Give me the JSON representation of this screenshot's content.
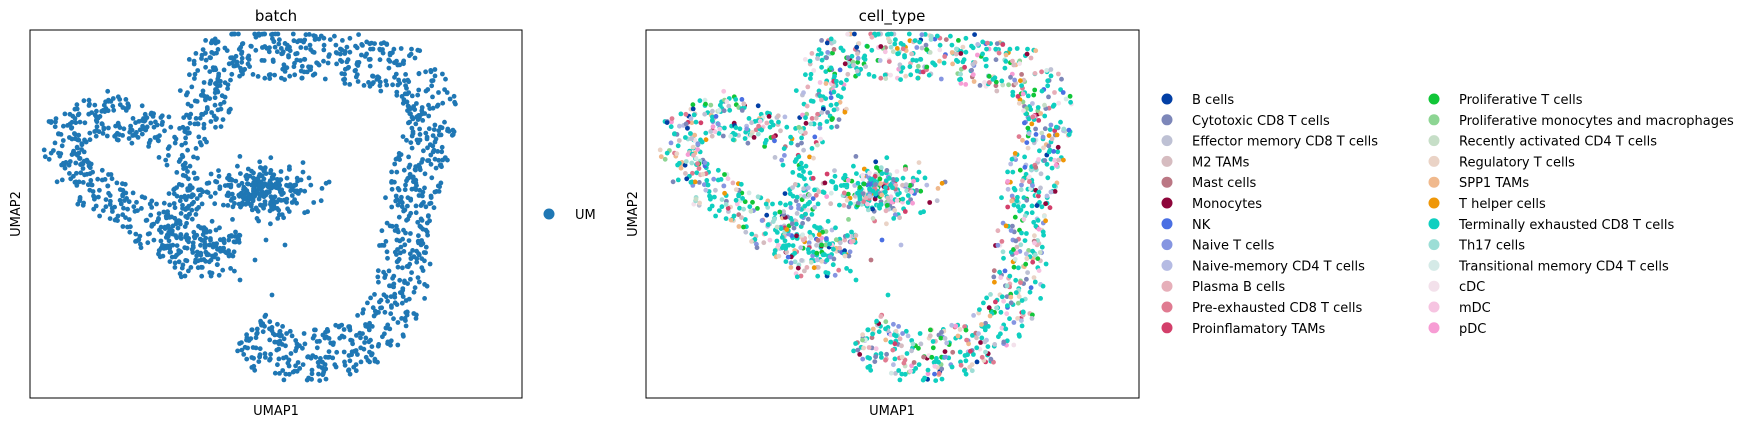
{
  "chart_data": [
    {
      "type": "scatter",
      "title": "batch",
      "xlabel": "UMAP1",
      "ylabel": "UMAP2",
      "xticks": "none",
      "yticks": "none",
      "grid": false,
      "legend_position": "right",
      "legend": [
        {
          "label": "UM",
          "color": "#1f77b4"
        }
      ]
    },
    {
      "type": "scatter",
      "title": "cell_type",
      "xlabel": "UMAP1",
      "ylabel": "UMAP2",
      "xticks": "none",
      "yticks": "none",
      "grid": false,
      "legend_position": "right",
      "legend_columns": 2,
      "legend": [
        {
          "label": "B cells",
          "color": "#023fa5"
        },
        {
          "label": "Cytotoxic CD8 T cells",
          "color": "#7d87b9"
        },
        {
          "label": "Effector memory CD8 T cells",
          "color": "#bec1d4"
        },
        {
          "label": "M2 TAMs",
          "color": "#d6bcc0"
        },
        {
          "label": "Mast cells",
          "color": "#bb7784"
        },
        {
          "label": "Monocytes",
          "color": "#8e063b"
        },
        {
          "label": "NK",
          "color": "#4a6fe3"
        },
        {
          "label": "Naive T cells",
          "color": "#8595e1"
        },
        {
          "label": "Naive-memory CD4 T cells",
          "color": "#b5bbe3"
        },
        {
          "label": "Plasma B cells",
          "color": "#e6afb9"
        },
        {
          "label": "Pre-exhausted CD8 T cells",
          "color": "#e07b91"
        },
        {
          "label": "Proinflamatory TAMs",
          "color": "#d33f6a"
        },
        {
          "label": "Proliferative T cells",
          "color": "#11c638"
        },
        {
          "label": "Proliferative monocytes and macrophages",
          "color": "#8dd593"
        },
        {
          "label": "Recently activated CD4 T cells",
          "color": "#c6dec7"
        },
        {
          "label": "Regulatory T cells",
          "color": "#ead3c6"
        },
        {
          "label": "SPP1 TAMs",
          "color": "#f0b98d"
        },
        {
          "label": "T helper cells",
          "color": "#ef9708"
        },
        {
          "label": "Terminally exhausted CD8 T cells",
          "color": "#0fcfc0"
        },
        {
          "label": "Th17 cells",
          "color": "#9cded6"
        },
        {
          "label": "Transitional memory CD4 T cells",
          "color": "#d5eae7"
        },
        {
          "label": "cDC",
          "color": "#f3e1eb"
        },
        {
          "label": "mDC",
          "color": "#f6c4e1"
        },
        {
          "label": "pDC",
          "color": "#f79cd4"
        }
      ]
    }
  ]
}
